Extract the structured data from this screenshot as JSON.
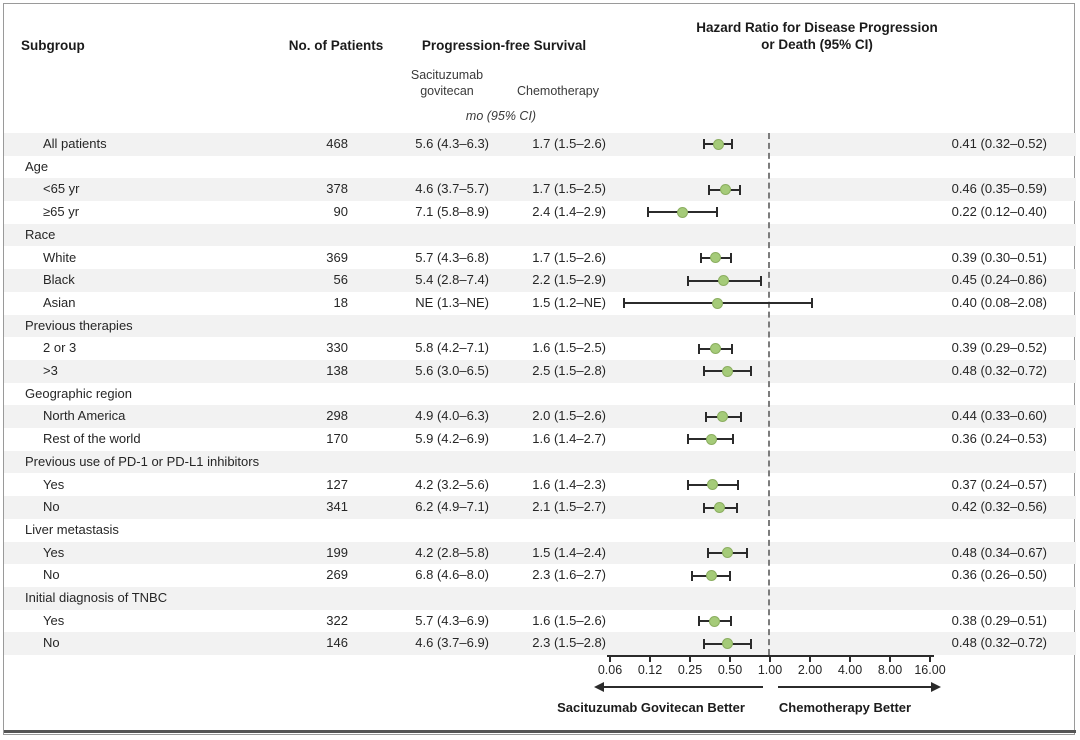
{
  "header": {
    "subgroup": "Subgroup",
    "patients": "No. of Patients",
    "pfs": "Progression-free Survival",
    "pfs_col1_line1": "Sacituzumab",
    "pfs_col1_line2": "govitecan",
    "pfs_col2": "Chemotherapy",
    "units": "mo (95% CI)",
    "hr_line1": "Hazard Ratio for Disease Progression",
    "hr_line2": "or Death (95% CI)"
  },
  "footer": {
    "left_better": "Sacituzumab Govitecan Better",
    "right_better": "Chemotherapy Better"
  },
  "colors": {
    "marker_fill": "#a5cb79",
    "marker_border": "#8bae60",
    "ci_line": "#2b2b2b",
    "row_shade": "#f2f2f2",
    "reference_dash": "#7c7c7c",
    "frame_border": "#9a9a9a",
    "bottom_rule": "#555555"
  },
  "table": {
    "rows": [
      {
        "section": false,
        "label": "All patients",
        "n": "468",
        "sg": "5.6 (4.3–6.3)",
        "chemo": "1.7 (1.5–2.6)",
        "hr": "0.41 (0.32–0.52)"
      },
      {
        "section": true,
        "label": "Age"
      },
      {
        "section": false,
        "label": "<65 yr",
        "n": "378",
        "sg": "4.6 (3.7–5.7)",
        "chemo": "1.7 (1.5–2.5)",
        "hr": "0.46 (0.35–0.59)"
      },
      {
        "section": false,
        "label": "≥65 yr",
        "n": "90",
        "sg": "7.1 (5.8–8.9)",
        "chemo": "2.4 (1.4–2.9)",
        "hr": "0.22 (0.12–0.40)"
      },
      {
        "section": true,
        "label": "Race"
      },
      {
        "section": false,
        "label": "White",
        "n": "369",
        "sg": "5.7 (4.3–6.8)",
        "chemo": "1.7 (1.5–2.6)",
        "hr": "0.39 (0.30–0.51)"
      },
      {
        "section": false,
        "label": "Black",
        "n": "56",
        "sg": "5.4 (2.8–7.4)",
        "chemo": "2.2 (1.5–2.9)",
        "hr": "0.45 (0.24–0.86)"
      },
      {
        "section": false,
        "label": "Asian",
        "n": "18",
        "sg": "NE (1.3–NE)",
        "chemo": "1.5 (1.2–NE)",
        "hr": "0.40 (0.08–2.08)"
      },
      {
        "section": true,
        "label": "Previous therapies"
      },
      {
        "section": false,
        "label": "2 or 3",
        "n": "330",
        "sg": "5.8 (4.2–7.1)",
        "chemo": "1.6 (1.5–2.5)",
        "hr": "0.39 (0.29–0.52)"
      },
      {
        "section": false,
        "label": ">3",
        "n": "138",
        "sg": "5.6 (3.0–6.5)",
        "chemo": "2.5 (1.5–2.8)",
        "hr": "0.48 (0.32–0.72)"
      },
      {
        "section": true,
        "label": "Geographic region"
      },
      {
        "section": false,
        "label": "North America",
        "n": "298",
        "sg": "4.9 (4.0–6.3)",
        "chemo": "2.0 (1.5–2.6)",
        "hr": "0.44 (0.33–0.60)"
      },
      {
        "section": false,
        "label": "Rest of the world",
        "n": "170",
        "sg": "5.9 (4.2–6.9)",
        "chemo": "1.6 (1.4–2.7)",
        "hr": "0.36 (0.24–0.53)"
      },
      {
        "section": true,
        "label": "Previous use of PD-1 or PD-L1 inhibitors"
      },
      {
        "section": false,
        "label": "Yes",
        "n": "127",
        "sg": "4.2 (3.2–5.6)",
        "chemo": "1.6 (1.4–2.3)",
        "hr": "0.37 (0.24–0.57)"
      },
      {
        "section": false,
        "label": "No",
        "n": "341",
        "sg": "6.2 (4.9–7.1)",
        "chemo": "2.1 (1.5–2.7)",
        "hr": "0.42 (0.32–0.56)"
      },
      {
        "section": true,
        "label": "Liver metastasis"
      },
      {
        "section": false,
        "label": "Yes",
        "n": "199",
        "sg": "4.2 (2.8–5.8)",
        "chemo": "1.5 (1.4–2.4)",
        "hr": "0.48 (0.34–0.67)"
      },
      {
        "section": false,
        "label": "No",
        "n": "269",
        "sg": "6.8 (4.6–8.0)",
        "chemo": "2.3 (1.6–2.7)",
        "hr": "0.36 (0.26–0.50)"
      },
      {
        "section": true,
        "label": "Initial diagnosis of TNBC"
      },
      {
        "section": false,
        "label": "Yes",
        "n": "322",
        "sg": "5.7 (4.3–6.9)",
        "chemo": "1.6 (1.5–2.6)",
        "hr": "0.38 (0.29–0.51)"
      },
      {
        "section": false,
        "label": "No",
        "n": "146",
        "sg": "4.6 (3.7–6.9)",
        "chemo": "2.3 (1.5–2.8)",
        "hr": "0.48 (0.32–0.72)"
      }
    ]
  },
  "chart_data": {
    "type": "scatter",
    "subtype": "forest-plot",
    "title": "Hazard Ratio for Disease Progression or Death (95% CI)",
    "x_scale": "log2",
    "x_ticks": [
      0.06,
      0.12,
      0.25,
      0.5,
      1.0,
      2.0,
      4.0,
      8.0,
      16.0
    ],
    "x_tick_labels": [
      "0.06",
      "0.12",
      "0.25",
      "0.50",
      "1.00",
      "2.00",
      "4.00",
      "8.00",
      "16.00"
    ],
    "reference_line": 1.0,
    "grid": false,
    "axis_annotations": {
      "left_of_1": "Sacituzumab Govitecan Better",
      "right_of_1": "Chemotherapy Better"
    },
    "points": [
      {
        "subgroup": "All patients",
        "hr": 0.41,
        "ci_low": 0.32,
        "ci_high": 0.52
      },
      {
        "subgroup": "<65 yr",
        "hr": 0.46,
        "ci_low": 0.35,
        "ci_high": 0.59
      },
      {
        "subgroup": "≥65 yr",
        "hr": 0.22,
        "ci_low": 0.12,
        "ci_high": 0.4
      },
      {
        "subgroup": "White",
        "hr": 0.39,
        "ci_low": 0.3,
        "ci_high": 0.51
      },
      {
        "subgroup": "Black",
        "hr": 0.45,
        "ci_low": 0.24,
        "ci_high": 0.86
      },
      {
        "subgroup": "Asian",
        "hr": 0.4,
        "ci_low": 0.08,
        "ci_high": 2.08
      },
      {
        "subgroup": "2 or 3 previous therapies",
        "hr": 0.39,
        "ci_low": 0.29,
        "ci_high": 0.52
      },
      {
        "subgroup": ">3 previous therapies",
        "hr": 0.48,
        "ci_low": 0.32,
        "ci_high": 0.72
      },
      {
        "subgroup": "North America",
        "hr": 0.44,
        "ci_low": 0.33,
        "ci_high": 0.6
      },
      {
        "subgroup": "Rest of the world",
        "hr": 0.36,
        "ci_low": 0.24,
        "ci_high": 0.53
      },
      {
        "subgroup": "Previous PD-1/PD-L1 inhibitors: Yes",
        "hr": 0.37,
        "ci_low": 0.24,
        "ci_high": 0.57
      },
      {
        "subgroup": "Previous PD-1/PD-L1 inhibitors: No",
        "hr": 0.42,
        "ci_low": 0.32,
        "ci_high": 0.56
      },
      {
        "subgroup": "Liver metastasis: Yes",
        "hr": 0.48,
        "ci_low": 0.34,
        "ci_high": 0.67
      },
      {
        "subgroup": "Liver metastasis: No",
        "hr": 0.36,
        "ci_low": 0.26,
        "ci_high": 0.5
      },
      {
        "subgroup": "Initial diagnosis of TNBC: Yes",
        "hr": 0.38,
        "ci_low": 0.29,
        "ci_high": 0.51
      },
      {
        "subgroup": "Initial diagnosis of TNBC: No",
        "hr": 0.48,
        "ci_low": 0.32,
        "ci_high": 0.72
      }
    ]
  }
}
